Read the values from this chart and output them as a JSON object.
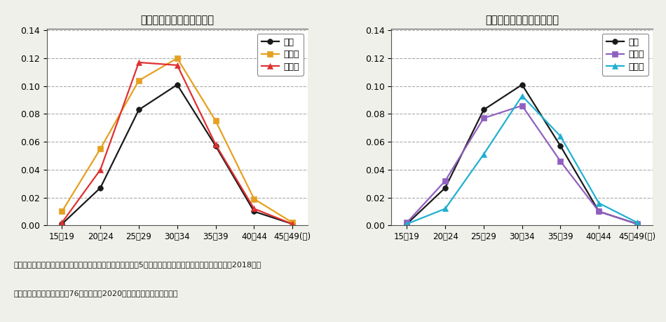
{
  "title1": "》全国、沖縄県、島根県《",
  "title2": "》全国、北海道、東京都《",
  "title1_display": "【全国、沖縄県、島根県】",
  "title2_display": "【全国、北海道、東京都】",
  "x_labels": [
    "15～19",
    "20～24",
    "25～29",
    "30～34",
    "35～39",
    "40～44",
    "45～49(歳)"
  ],
  "chart1_keys": [
    "全国",
    "沖縄県",
    "島根県"
  ],
  "chart1_values": [
    [
      0.001,
      0.027,
      0.083,
      0.101,
      0.057,
      0.01,
      0.001
    ],
    [
      0.01,
      0.055,
      0.104,
      0.12,
      0.075,
      0.019,
      0.002
    ],
    [
      0.002,
      0.04,
      0.117,
      0.115,
      0.058,
      0.012,
      0.001
    ]
  ],
  "chart2_keys": [
    "全国",
    "北海道",
    "東京都"
  ],
  "chart2_values": [
    [
      0.001,
      0.027,
      0.083,
      0.101,
      0.057,
      0.01,
      0.001
    ],
    [
      0.002,
      0.032,
      0.077,
      0.086,
      0.046,
      0.01,
      0.001
    ],
    [
      0.001,
      0.012,
      0.051,
      0.093,
      0.064,
      0.016,
      0.002
    ]
  ],
  "colors1": [
    "#1a1a1a",
    "#e6a020",
    "#e03030"
  ],
  "colors2": [
    "#1a1a1a",
    "#9060c0",
    "#20b0d0"
  ],
  "markers1": [
    "o",
    "s",
    "^"
  ],
  "markers2": [
    "o",
    "s",
    "^"
  ],
  "ylim": [
    0.0,
    0.14
  ],
  "yticks": [
    0.0,
    0.02,
    0.04,
    0.06,
    0.08,
    0.1,
    0.12,
    0.14
  ],
  "footer_line1": "資料：別府志海・佐々井司「都道府県別にみた女性の年齢（5歳階級）別出生率および合計特殊出生率：2018年」",
  "footer_line2": "　　　『人口問題研究』第76巻第１号、2020年３月、表１を基に作成。",
  "bg_color": "#f0f0eb",
  "plot_bg": "#ffffff"
}
